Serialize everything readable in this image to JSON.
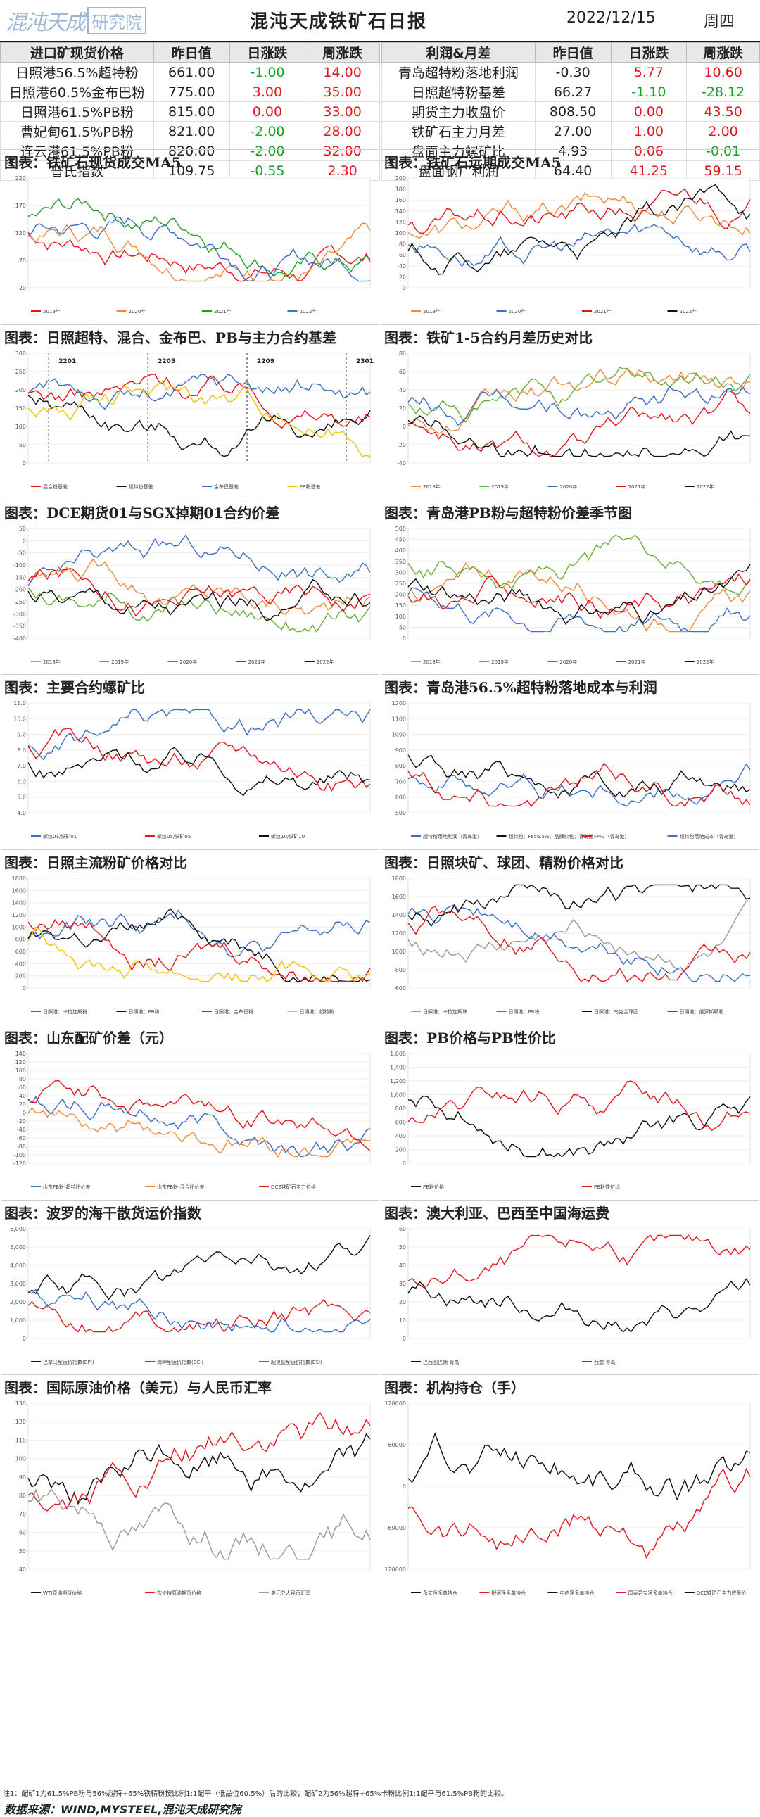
{
  "header": {
    "logo_text": "混沌天成",
    "logo_box": "研究院",
    "title": "混沌天成铁矿石日报",
    "date": "2022/12/15",
    "weekday": "周四"
  },
  "left_table": {
    "headers": [
      "进口矿现货价格",
      "昨日值",
      "日涨跌",
      "周涨跌"
    ],
    "rows": [
      {
        "name": "日照港56.5%超特粉",
        "value": "661.00",
        "day": "-1.00",
        "week": "14.00",
        "dc": "green",
        "wc": "red"
      },
      {
        "name": "日照港60.5%金布巴粉",
        "value": "775.00",
        "day": "3.00",
        "week": "35.00",
        "dc": "red",
        "wc": "red"
      },
      {
        "name": "日照港61.5%PB粉",
        "value": "815.00",
        "day": "0.00",
        "week": "33.00",
        "dc": "red",
        "wc": "red"
      },
      {
        "name": "曹妃甸61.5%PB粉",
        "value": "821.00",
        "day": "-2.00",
        "week": "28.00",
        "dc": "green",
        "wc": "red"
      },
      {
        "name": "连云港61.5%PB粉",
        "value": "820.00",
        "day": "-2.00",
        "week": "32.00",
        "dc": "green",
        "wc": "red"
      },
      {
        "name": "普氏指数",
        "value": "109.75",
        "day": "-0.55",
        "week": "2.30",
        "dc": "green",
        "wc": "red"
      }
    ]
  },
  "right_table": {
    "headers": [
      "利润&月差",
      "昨日值",
      "日涨跌",
      "周涨跌"
    ],
    "rows": [
      {
        "name": "青岛超特粉落地利润",
        "value": "-0.30",
        "day": "5.77",
        "week": "10.60",
        "dc": "red",
        "wc": "red"
      },
      {
        "name": "日照超特粉基差",
        "value": "66.27",
        "day": "-1.10",
        "week": "-28.12",
        "dc": "green",
        "wc": "green"
      },
      {
        "name": "期货主力收盘价",
        "value": "808.50",
        "day": "0.00",
        "week": "43.50",
        "dc": "red",
        "wc": "red"
      },
      {
        "name": "铁矿石主力月差",
        "value": "27.00",
        "day": "1.00",
        "week": "2.00",
        "dc": "red",
        "wc": "red"
      },
      {
        "name": "盘面主力螺矿比",
        "value": "4.93",
        "day": "0.06",
        "week": "-0.01",
        "dc": "red",
        "wc": "green"
      },
      {
        "name": "盘面钢厂利润",
        "value": "64.40",
        "day": "41.25",
        "week": "59.15",
        "dc": "red",
        "wc": "red"
      }
    ]
  },
  "colors": {
    "red": "#e0171f",
    "green": "#1aa022",
    "blue": "#3a6fc4",
    "black": "#111111",
    "orange": "#f08a3a",
    "gray": "#9a9a9a",
    "yellow": "#f2c200",
    "olive": "#6aab3a"
  },
  "panels": [
    {
      "title": "图表：铁矿石现货成交MA5",
      "yticks": [
        "220",
        "170",
        "120",
        "70",
        "20"
      ],
      "legend": [
        "2019年",
        "2020年",
        "2021年",
        "2022年"
      ],
      "series": [
        "red",
        "orange",
        "green",
        "blue"
      ]
    },
    {
      "title": "图表：铁矿石远期成交MA5",
      "yticks": [
        "200",
        "180",
        "160",
        "140",
        "120",
        "100",
        "80",
        "60",
        "40",
        "20",
        "0"
      ],
      "legend": [
        "2019年",
        "2020年",
        "2021年",
        "2022年"
      ],
      "series": [
        "orange",
        "blue",
        "red",
        "black"
      ]
    },
    {
      "title": "图表：日照超特、混合、金布巴、PB与主力合约基差",
      "yticks": [
        "300",
        "250",
        "200",
        "150",
        "100",
        "50",
        "0"
      ],
      "legend": [
        "混合粉基差",
        "超特粉基差",
        "金布巴基差",
        "PB粉基差"
      ],
      "series": [
        "red",
        "black",
        "blue",
        "yellow"
      ],
      "marks": [
        "2201",
        "2205",
        "2209",
        "2301"
      ]
    },
    {
      "title": "图表：铁矿1-5合约月差历史对比",
      "yticks": [
        "80",
        "60",
        "40",
        "20",
        "0",
        "-20",
        "-40"
      ],
      "legend": [
        "2018年",
        "2019年",
        "2020年",
        "2021年",
        "2022年"
      ],
      "series": [
        "orange",
        "olive",
        "blue",
        "red",
        "black"
      ]
    },
    {
      "title": "图表：DCE期货01与SGX掉期01合约价差",
      "yticks": [
        "50",
        "0",
        "-50",
        "-100",
        "-150",
        "-200",
        "-250",
        "-300",
        "-350",
        "-400"
      ],
      "legend": [
        "2018年",
        "2019年",
        "2020年",
        "2021年",
        "2022年"
      ],
      "series": [
        "orange",
        "olive",
        "blue",
        "red",
        "black"
      ]
    },
    {
      "title": "图表：青岛港PB粉与超特粉价差季节图",
      "yticks": [
        "500",
        "450",
        "400",
        "350",
        "300",
        "250",
        "200",
        "150",
        "100",
        "50",
        "0"
      ],
      "legend": [
        "2018年",
        "2019年",
        "2020年",
        "2021年",
        "2022年"
      ],
      "series": [
        "orange",
        "olive",
        "blue",
        "red",
        "black"
      ]
    },
    {
      "title": "图表：主要合约螺矿比",
      "yticks": [
        "11.0",
        "10.0",
        "9.0",
        "8.0",
        "7.0",
        "6.0",
        "5.0",
        "4.0"
      ],
      "legend": [
        "螺纹01/铁矿01",
        "螺纹05/铁矿05",
        "螺纹10/铁矿10"
      ],
      "series": [
        "blue",
        "red",
        "black"
      ]
    },
    {
      "title": "图表：青岛港56.5%超特粉落地成本与利润",
      "yticks": [
        "1200",
        "1100",
        "1000",
        "900",
        "800",
        "700",
        "600",
        "500"
      ],
      "legend": [
        "超特粉落地利润（青岛港）",
        "超特粉：Fe56.5%：品牌价格：青岛港",
        "FMG（青岛港）",
        "超特粉落地成本（青岛港）"
      ],
      "series": [
        "blue",
        "black",
        "red"
      ]
    },
    {
      "title": "图表：日照主流粉矿价格对比",
      "yticks": [
        "1800",
        "1600",
        "1400",
        "1200",
        "1000",
        "800",
        "600",
        "400",
        "200",
        "0"
      ],
      "legend": [
        "日照港：卡拉加斯粉",
        "日照港：PB粉",
        "日照港：金布巴粉",
        "日照港：超特粉"
      ],
      "series": [
        "blue",
        "black",
        "red",
        "yellow"
      ]
    },
    {
      "title": "图表：日照块矿、球团、精粉价格对比",
      "yticks": [
        "1800",
        "1600",
        "1400",
        "1200",
        "1000",
        "800",
        "600"
      ],
      "legend": [
        "日照港：卡拉加斯块",
        "日照港：PB块",
        "日照港：乌克兰球团",
        "日照港：俄罗斯精粉"
      ],
      "series": [
        "gray",
        "blue",
        "black",
        "red"
      ]
    },
    {
      "title": "图表：山东配矿价差（元）",
      "yticks": [
        "140",
        "120",
        "100",
        "80",
        "60",
        "40",
        "20",
        "0",
        "-20",
        "-40",
        "-60",
        "-80",
        "-100",
        "-120"
      ],
      "legend": [
        "山东PB粉-超特粉价差",
        "山东PB粉-混合粉价差",
        "DCE铁矿石主力价格"
      ],
      "series": [
        "blue",
        "orange",
        "red"
      ]
    },
    {
      "title": "图表：PB价格与PB性价比",
      "yticks": [
        "1,600",
        "1,400",
        "1,200",
        "1,000",
        "800",
        "600",
        "400",
        "200",
        "0"
      ],
      "legend": [
        "PB粉价格",
        "PB粉性价比"
      ],
      "series": [
        "black",
        "red"
      ]
    },
    {
      "title": "图表：波罗的海干散货运价指数",
      "yticks": [
        "6,000",
        "5,000",
        "4,000",
        "3,000",
        "2,000",
        "1,000",
        "0"
      ],
      "legend": [
        "巴拿马型运价指数(BPI)",
        "海岬型运价指数(BCI)",
        "超灵便型运价指数(BSI)"
      ],
      "series": [
        "black",
        "red",
        "blue"
      ]
    },
    {
      "title": "图表：澳大利亚、巴西至中国海运费",
      "yticks": [
        "60",
        "50",
        "40",
        "30",
        "20",
        "10",
        "0"
      ],
      "legend": [
        "巴西图巴朗-青岛",
        "西澳-青岛"
      ],
      "series": [
        "black",
        "red"
      ]
    },
    {
      "title": "图表：国际原油价格（美元）与人民币汇率",
      "yticks": [
        "130",
        "120",
        "110",
        "100",
        "90",
        "80",
        "70",
        "60",
        "50",
        "40"
      ],
      "legend": [
        "WTI原油期货价格",
        "布伦特原油期货价格",
        "美元兑人民币汇率"
      ],
      "series": [
        "black",
        "red",
        "gray"
      ]
    },
    {
      "title": "图表：机构持仓（手）",
      "yticks": [
        "120000",
        "60000",
        "0",
        "-60000",
        "-120000"
      ],
      "legend": [
        "永安净多单持仓",
        "银河净多单持仓",
        "中信净多单持仓",
        "国泰君安净多单持仓",
        "DCE铁矿石主力收盘价"
      ],
      "series": [
        "black",
        "red"
      ]
    }
  ],
  "footer": {
    "note": "注1：配矿1为61.5%PB粉与56%超特+65%铁精粉按比例1:1配平（低品位60.5%）后的比较；配矿2为56%超特+65%卡粉比例1:1配平与61.5%PB粉的比较。",
    "source": "数据来源：WIND,MYSTEEL,混沌天成研究院"
  }
}
